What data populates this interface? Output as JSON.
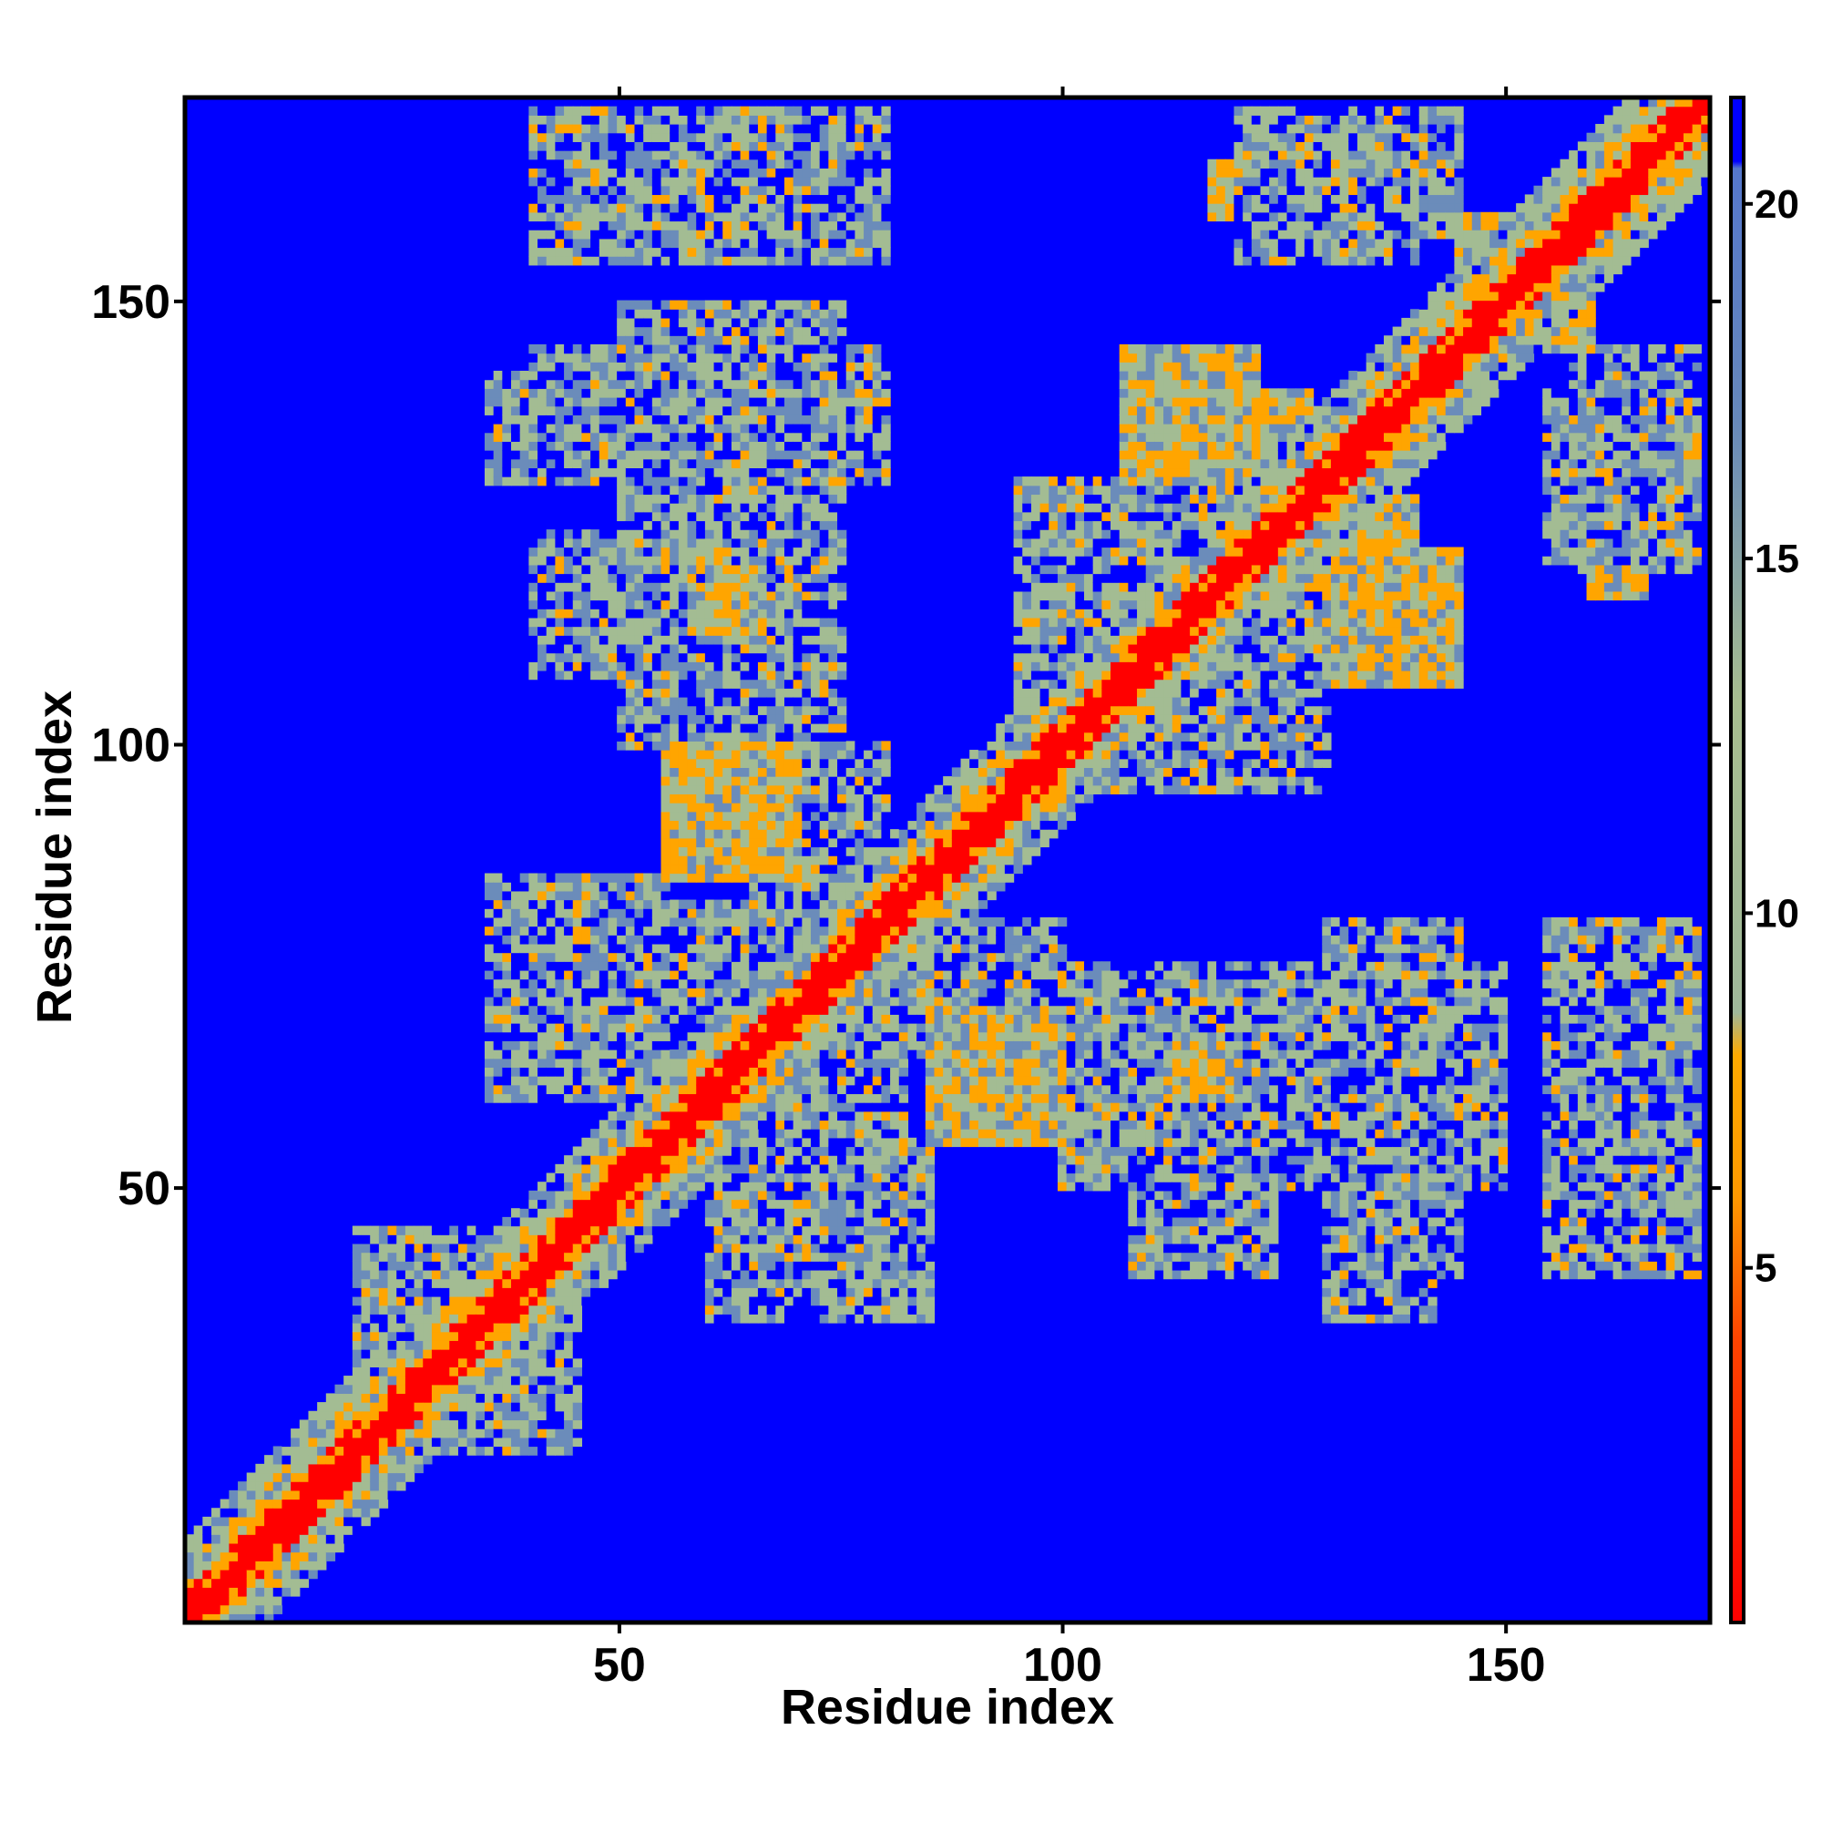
{
  "chart_data": {
    "type": "heatmap",
    "title": "",
    "xlabel": "Residue index",
    "ylabel": "Residue index",
    "n_residues": 173,
    "xlim": [
      1,
      173
    ],
    "ylim": [
      1,
      173
    ],
    "x_ticks": [
      50,
      100,
      150
    ],
    "y_ticks": [
      50,
      100,
      150
    ],
    "colorbar": {
      "range": [
        0,
        21.5
      ],
      "ticks": [
        5,
        10,
        15,
        20
      ],
      "stops": [
        {
          "value": 0,
          "color": "#ff0000"
        },
        {
          "value": 4,
          "color": "#ff4400"
        },
        {
          "value": 6,
          "color": "#ff9900"
        },
        {
          "value": 8,
          "color": "#ffaa00"
        },
        {
          "value": 8.6,
          "color": "#9fb89a"
        },
        {
          "value": 13,
          "color": "#a7bd8f"
        },
        {
          "value": 17,
          "color": "#6688bb"
        },
        {
          "value": 20.5,
          "color": "#5577cc"
        },
        {
          "value": 20.6,
          "color": "#0000ff"
        }
      ]
    },
    "background_color": "#0000ff",
    "diagonal_color": "#ff0000",
    "near_color": "#ffa500",
    "mid_color": "#a3bc93",
    "far_color": "#6b8cba",
    "contact_blocks": [
      {
        "x": [
          40,
          75
        ],
        "y": [
          68,
          82
        ],
        "d": 15
      },
      {
        "x": [
          62,
          80
        ],
        "y": [
          60,
          80
        ],
        "d": 14
      },
      {
        "x": [
          58,
          68
        ],
        "y": [
          90,
          100
        ],
        "d": 7
      },
      {
        "x": [
          60,
          66
        ],
        "y": [
          112,
          120
        ],
        "d": 7
      },
      {
        "x": [
          40,
          65
        ],
        "y": [
          108,
          124
        ],
        "d": 14
      },
      {
        "x": [
          40,
          80
        ],
        "y": [
          130,
          145
        ],
        "d": 14
      },
      {
        "x": [
          40,
          65
        ],
        "y": [
          160,
          172
        ],
        "d": 14
      },
      {
        "x": [
          85,
          100
        ],
        "y": [
          55,
          70
        ],
        "d": 7
      },
      {
        "x": [
          100,
          150
        ],
        "y": [
          50,
          75
        ],
        "d": 14
      },
      {
        "x": [
          110,
          122
        ],
        "y": [
          60,
          66
        ],
        "d": 7
      },
      {
        "x": [
          130,
          142
        ],
        "y": [
          35,
          70
        ],
        "d": 12
      },
      {
        "x": [
          80,
          100
        ],
        "y": [
          65,
          80
        ],
        "d": 13
      },
      {
        "x": [
          118,
          128
        ],
        "y": [
          128,
          140
        ],
        "d": 7
      },
      {
        "x": [
          130,
          145
        ],
        "y": [
          107,
          122
        ],
        "d": 8
      },
      {
        "x": [
          100,
          130
        ],
        "y": [
          95,
          120
        ],
        "d": 14
      },
      {
        "x": [
          120,
          145
        ],
        "y": [
          158,
          172
        ],
        "d": 13
      },
      {
        "x": [
          117,
          125
        ],
        "y": [
          160,
          166
        ],
        "d": 7
      },
      {
        "x": [
          145,
          160
        ],
        "y": [
          145,
          160
        ],
        "d": 6
      },
      {
        "x": [
          155,
          172
        ],
        "y": [
          120,
          140
        ],
        "d": 12
      },
      {
        "x": [
          160,
          172
        ],
        "y": [
          133,
          140
        ],
        "d": 7
      },
      {
        "x": [
          155,
          172
        ],
        "y": [
          40,
          80
        ],
        "d": 15
      },
      {
        "x": [
          60,
          85
        ],
        "y": [
          35,
          55
        ],
        "d": 14
      },
      {
        "x": [
          68,
          78
        ],
        "y": [
          36,
          44
        ],
        "d": 7
      },
      {
        "x": [
          20,
          40
        ],
        "y": [
          28,
          45
        ],
        "d": 14
      }
    ]
  }
}
